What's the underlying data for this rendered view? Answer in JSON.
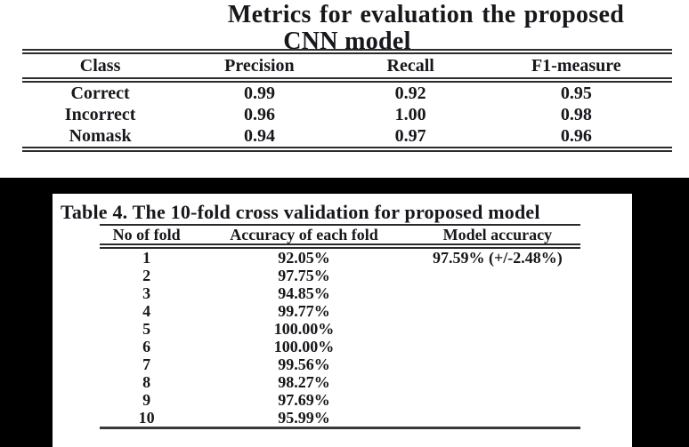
{
  "metrics_table": {
    "title_line1": "Metrics for evaluation the proposed",
    "title_line2": "CNN model",
    "headers": [
      "Class",
      "Precision",
      "Recall",
      "F1-measure"
    ],
    "rows": [
      {
        "class": "Correct",
        "precision": "0.99",
        "recall": "0.92",
        "f1": "0.95"
      },
      {
        "class": "Incorrect",
        "precision": "0.96",
        "recall": "1.00",
        "f1": "0.98"
      },
      {
        "class": "Nomask",
        "precision": "0.94",
        "recall": "0.97",
        "f1": "0.96"
      }
    ]
  },
  "fold_table": {
    "caption": "Table 4. The 10-fold cross validation for proposed model",
    "headers": [
      "No of fold",
      "Accuracy of each fold",
      "Model accuracy"
    ],
    "rows": [
      {
        "fold": "1",
        "accuracy": "92.05%",
        "model_accuracy": "97.59% (+/-2.48%)"
      },
      {
        "fold": "2",
        "accuracy": "97.75%",
        "model_accuracy": ""
      },
      {
        "fold": "3",
        "accuracy": "94.85%",
        "model_accuracy": ""
      },
      {
        "fold": "4",
        "accuracy": "99.77%",
        "model_accuracy": ""
      },
      {
        "fold": "5",
        "accuracy": "100.00%",
        "model_accuracy": ""
      },
      {
        "fold": "6",
        "accuracy": "100.00%",
        "model_accuracy": ""
      },
      {
        "fold": "7",
        "accuracy": "99.56%",
        "model_accuracy": ""
      },
      {
        "fold": "8",
        "accuracy": "98.27%",
        "model_accuracy": ""
      },
      {
        "fold": "9",
        "accuracy": "97.69%",
        "model_accuracy": ""
      },
      {
        "fold": "10",
        "accuracy": "95.99%",
        "model_accuracy": ""
      }
    ]
  },
  "colors": {
    "page_background": "#ffffff",
    "band_background": "#000000",
    "text": "#17171c",
    "rule": "#2b2b2b"
  }
}
